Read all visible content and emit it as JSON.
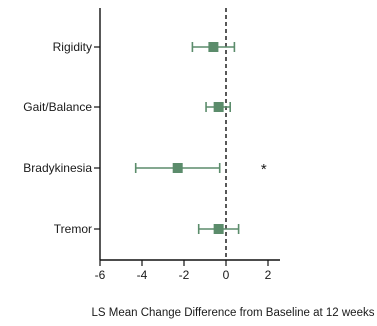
{
  "chart_data": {
    "type": "forest",
    "xlabel": "LS Mean Change Difference from Baseline at 12 weeks",
    "xlim": [
      -6,
      2
    ],
    "xticks": [
      "-6",
      "-4",
      "-2",
      "0",
      "2"
    ],
    "reference_line": 0,
    "marker_color": "#5b8c6b",
    "categories": [
      "Rigidity",
      "Gait/Balance",
      "Bradykinesia",
      "Tremor"
    ],
    "points": [
      {
        "label": "Rigidity",
        "estimate": -0.6,
        "lower": -1.6,
        "upper": 0.4,
        "annotation": ""
      },
      {
        "label": "Gait/Balance",
        "estimate": -0.35,
        "lower": -0.95,
        "upper": 0.2,
        "annotation": ""
      },
      {
        "label": "Bradykinesia",
        "estimate": -2.3,
        "lower": -4.3,
        "upper": -0.3,
        "annotation": "*"
      },
      {
        "label": "Tremor",
        "estimate": -0.35,
        "lower": -1.3,
        "upper": 0.6,
        "annotation": ""
      }
    ]
  }
}
